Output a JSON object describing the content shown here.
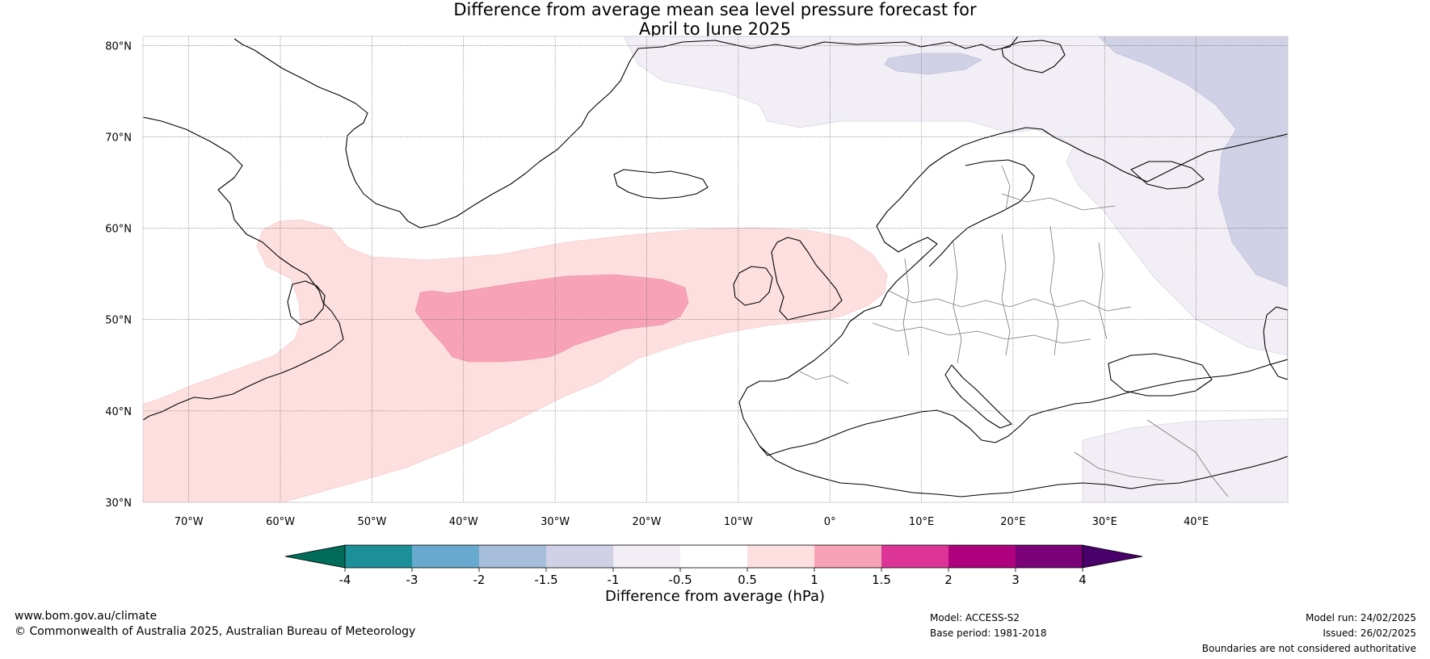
{
  "title": {
    "line1": "Difference from average mean sea level pressure forecast for",
    "line2": "April to June 2025"
  },
  "map": {
    "lat_labels": [
      "80°N",
      "70°N",
      "60°N",
      "50°N",
      "40°N",
      "30°N"
    ],
    "lat_values": [
      80,
      70,
      60,
      50,
      40,
      30
    ],
    "lon_labels": [
      "70°W",
      "60°W",
      "50°W",
      "40°W",
      "30°W",
      "20°W",
      "10°W",
      "0°",
      "10°E",
      "20°E",
      "30°E",
      "40°E"
    ],
    "lon_values": [
      -70,
      -60,
      -50,
      -40,
      -30,
      -20,
      -10,
      0,
      10,
      20,
      30,
      40
    ],
    "lon_range": [
      -75,
      50
    ],
    "lat_range": [
      30,
      81
    ],
    "grid": true,
    "colors": {
      "positive_light": "#fddfdf",
      "positive_mid": "#f8a2b8",
      "negative_very_light": "#f2eef5",
      "negative_light": "#d0d1e6",
      "land_outline": "#000000",
      "border": "#777777",
      "grid": "#666666"
    }
  },
  "colorbar": {
    "tick_labels": [
      "-4",
      "-3",
      "-2",
      "-1.5",
      "-1",
      "-0.5",
      "0.5",
      "1",
      "1.5",
      "2",
      "3",
      "4"
    ],
    "colors": [
      "#016c59",
      "#1c9099",
      "#67a9cf",
      "#a6bddb",
      "#d0d1e6",
      "#f2eef5",
      "#ffffff",
      "#fddfdf",
      "#f8a2b8",
      "#dd3497",
      "#ae017e",
      "#7a0177",
      "#49006a"
    ],
    "label": "Difference from average (hPa)"
  },
  "footer": {
    "website": "www.bom.gov.au/climate",
    "copyright": "© Commonwealth of Australia 2025, Australian Bureau of Meteorology",
    "model": "Model: ACCESS-S2",
    "base_period": "Base period: 1981-2018",
    "model_run": "Model run: 24/02/2025",
    "issued": "Issued: 26/02/2025",
    "disclaimer": "Boundaries are not considered authoritative"
  }
}
